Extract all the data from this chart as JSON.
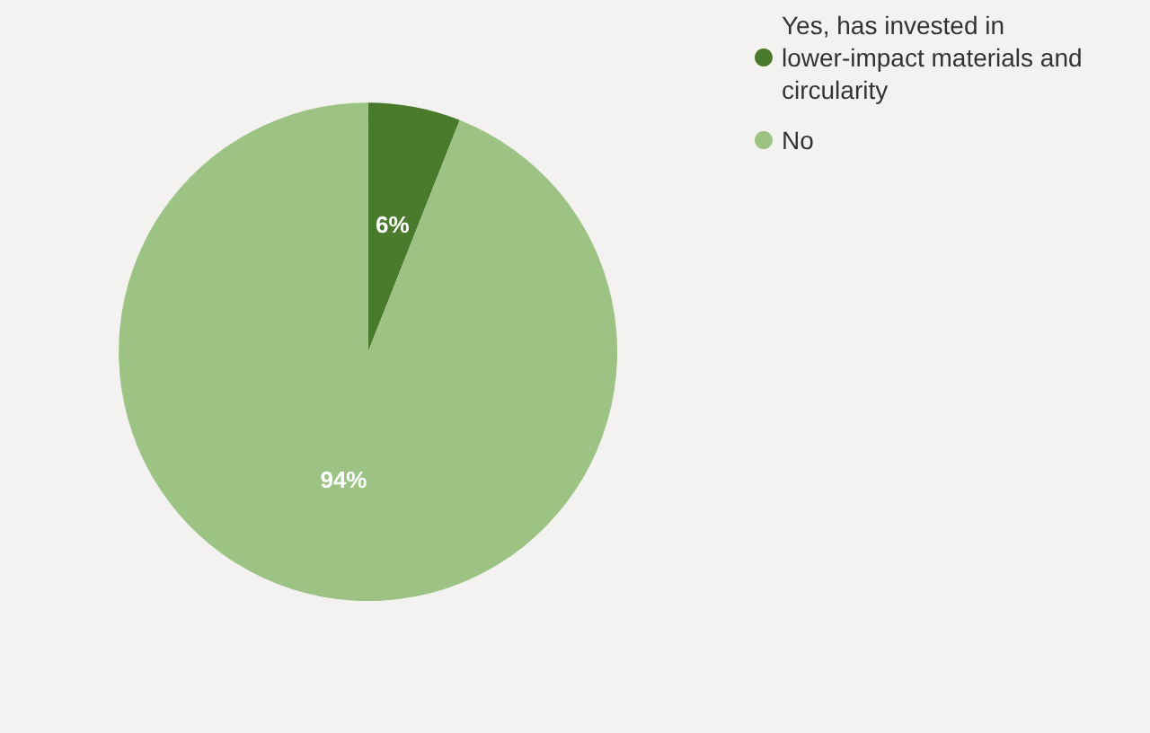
{
  "chart_data": {
    "type": "pie",
    "categories": [
      "Yes, has invested in lower-impact materials and circularity",
      "No"
    ],
    "values": [
      6,
      94
    ],
    "colors": [
      "#4a7a2c",
      "#9dc384"
    ],
    "value_labels": [
      "6%",
      "94%"
    ],
    "legend": "top right"
  }
}
